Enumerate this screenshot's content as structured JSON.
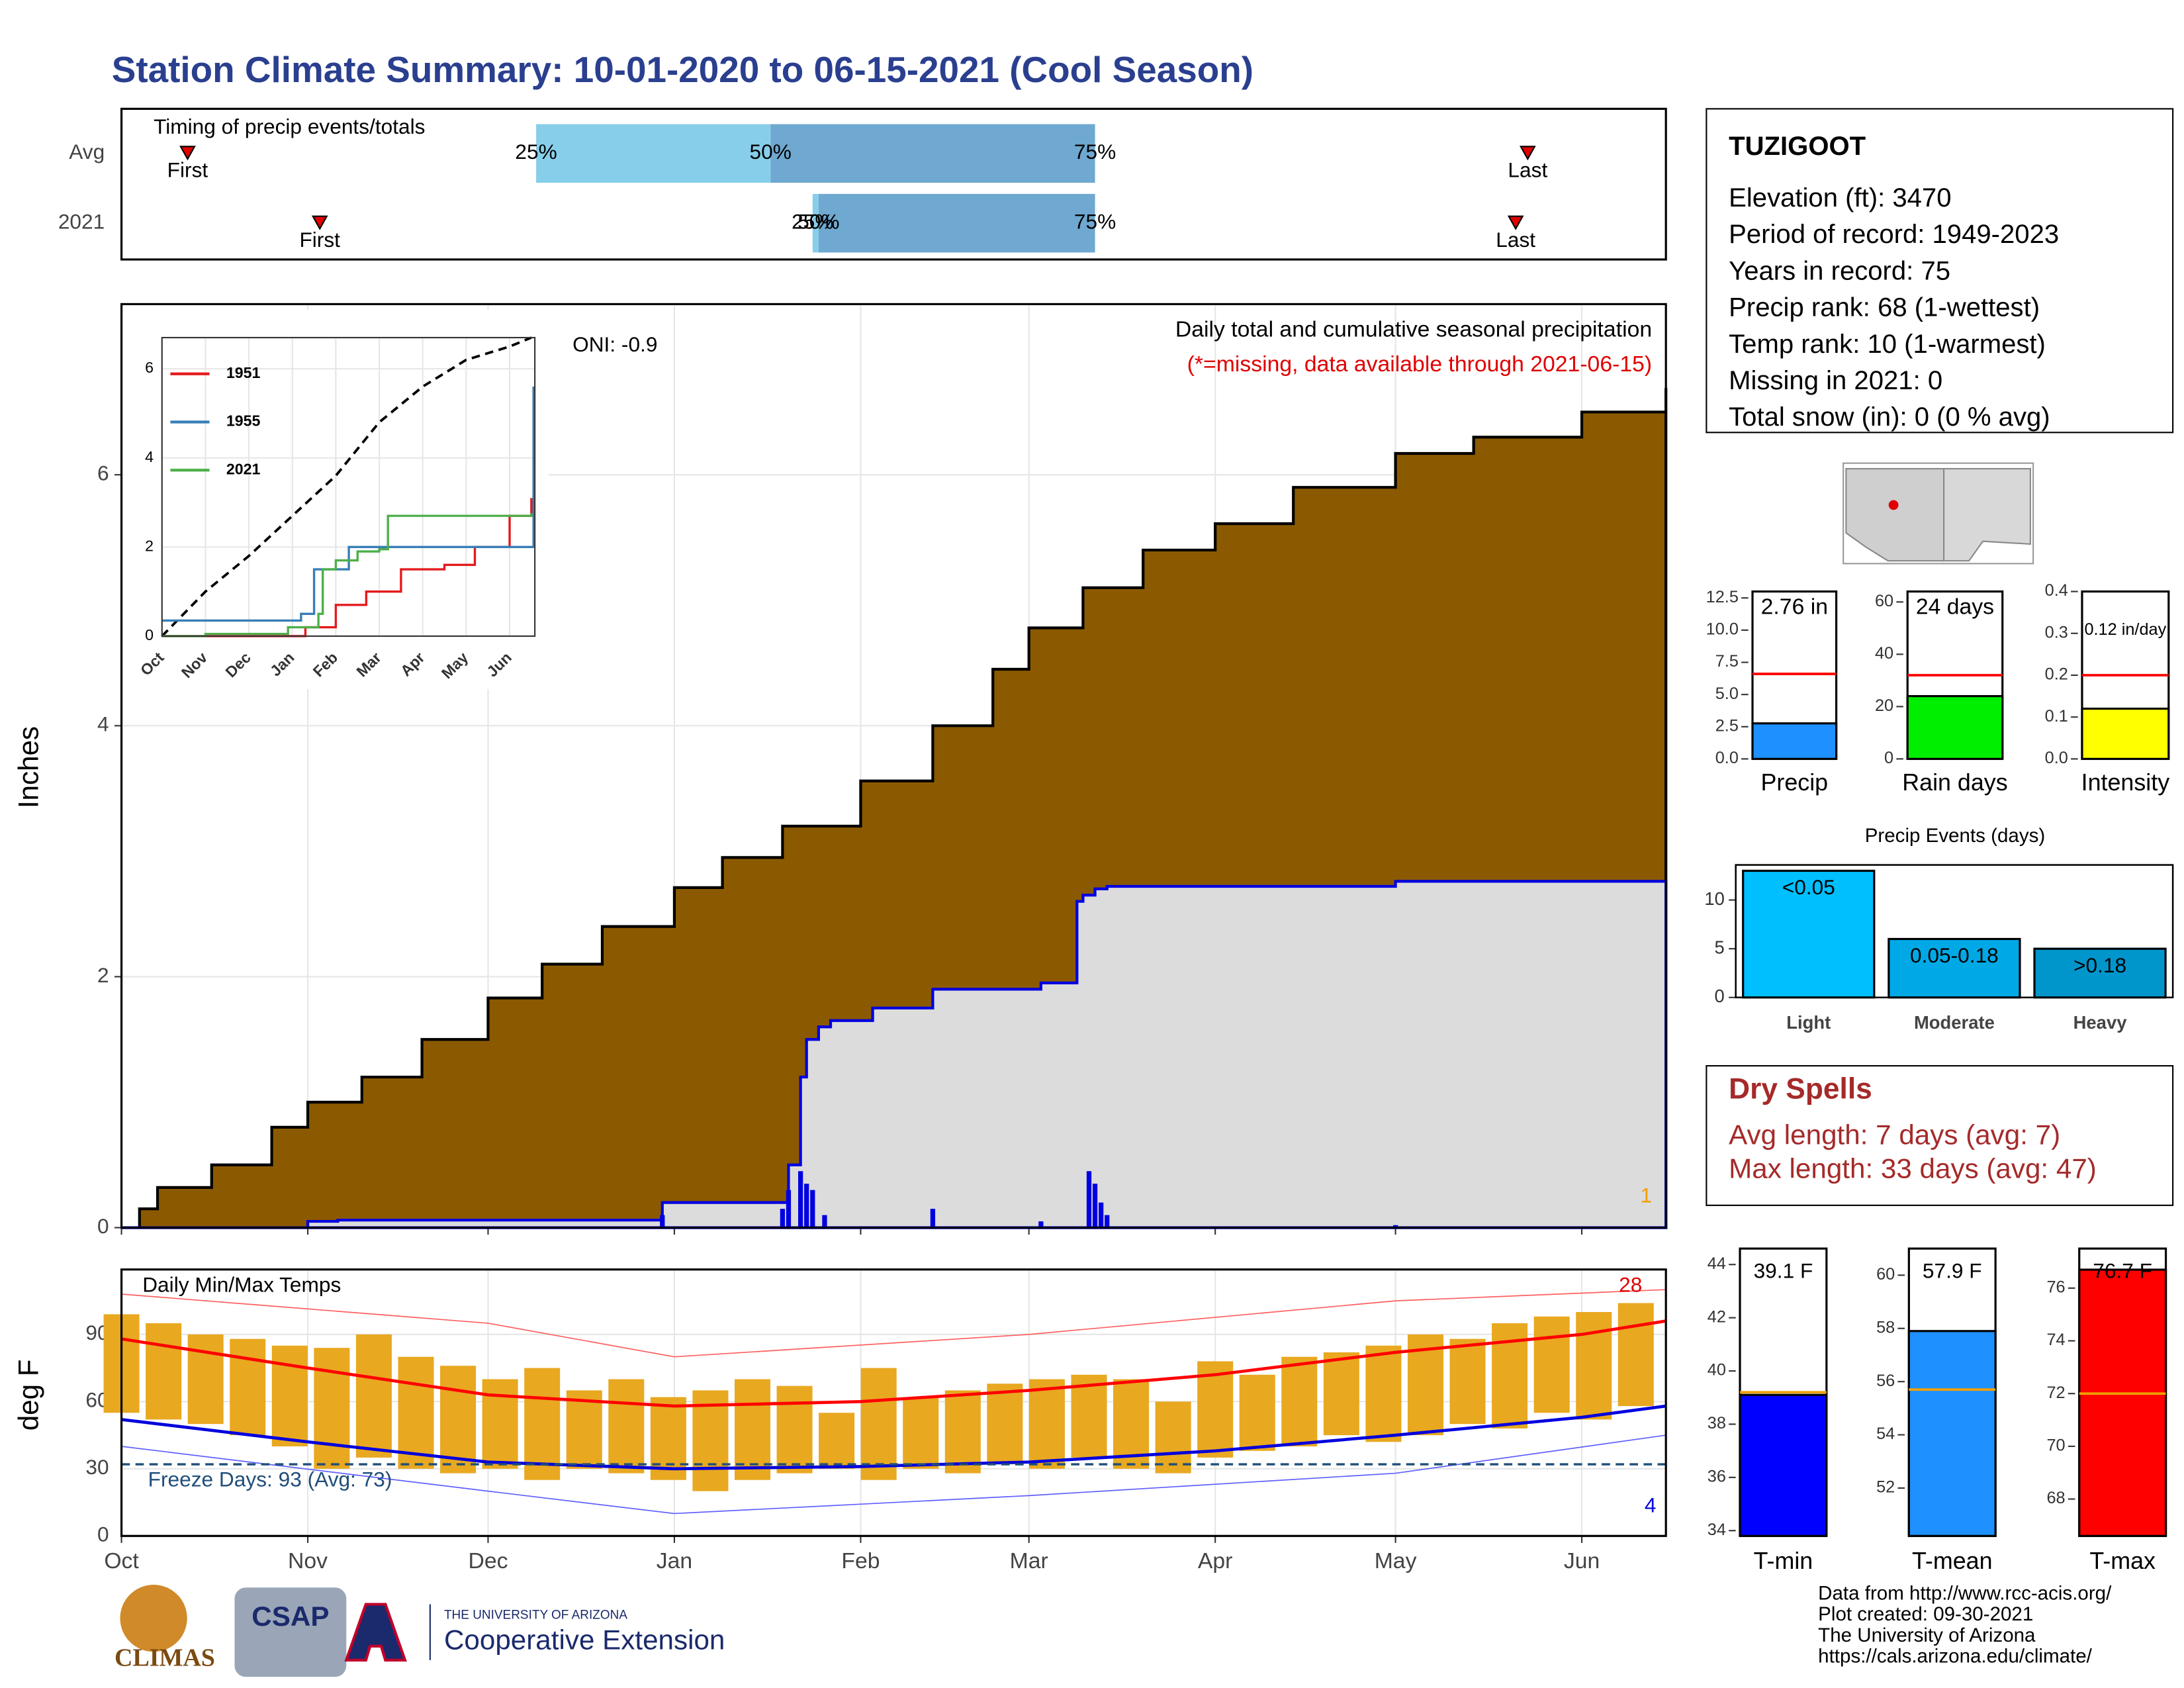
{
  "title": "Station Climate Summary: 10-01-2020 to 06-15-2021 (Cool Season)",
  "station": {
    "name": "TUZIGOOT",
    "lines": [
      "Elevation (ft): 3470",
      "Period of record: 1949-2023",
      "Years in record: 75",
      "Precip rank: 68 (1-wettest)",
      "Temp rank: 10 (1-warmest)",
      "Missing in 2021: 0",
      "Total snow (in): 0 (0 % avg)"
    ]
  },
  "dry_spells": {
    "title": "Dry Spells",
    "lines": [
      "Avg length: 7 days (avg: 7)",
      "Max length: 33 days (avg: 47)"
    ]
  },
  "footer": [
    "Data from http://www.rcc-acis.org/",
    "Plot created: 09-30-2021",
    "The University of Arizona",
    "https://cals.arizona.edu/climate/"
  ],
  "logos": {
    "climas": "CLIMAS",
    "csap": "CSAP",
    "ua_small": "THE UNIVERSITY OF ARIZONA",
    "ua": "Cooperative Extension"
  },
  "chart_data": [
    {
      "type": "timing",
      "title": "Timing of precip events/totals",
      "categories": [
        "Avg",
        "2021"
      ],
      "xlim": [
        0,
        257
      ],
      "rows": [
        {
          "first": 11,
          "p25": 69,
          "p50": 108,
          "p75": 162,
          "last": 234
        },
        {
          "first": 33,
          "p25": 115,
          "p50": 116,
          "p75": 162,
          "last": 232
        }
      ],
      "marker_labels": [
        "First",
        "Last"
      ],
      "pct_labels": [
        "25%",
        "50%",
        "75%"
      ],
      "colors": [
        "#87ceeb",
        "#6fa8d0"
      ],
      "marker_color": "#e00000"
    },
    {
      "type": "precip",
      "title": "Daily total and cumulative seasonal precipitation",
      "subtitle": "(*=missing, data available through 2021-06-15)",
      "annotation": "ONI: -0.9",
      "missing_label": "1",
      "y_label": "Inches",
      "xlim": [
        0,
        257
      ],
      "ylim": [
        0,
        7.36
      ],
      "yticks": [
        0,
        2,
        4,
        6
      ],
      "xticks": [
        0,
        31,
        61,
        92,
        123,
        151,
        182,
        212,
        243
      ],
      "grid": true,
      "avg": {
        "x": [
          0,
          3,
          6,
          15,
          25,
          31,
          40,
          50,
          61,
          70,
          80,
          92,
          100,
          110,
          123,
          135,
          145,
          151,
          160,
          170,
          182,
          195,
          212,
          225,
          243,
          257
        ],
        "values": [
          0,
          0.15,
          0.32,
          0.5,
          0.8,
          1.0,
          1.2,
          1.5,
          1.83,
          2.1,
          2.4,
          2.71,
          2.95,
          3.2,
          3.56,
          4.0,
          4.45,
          4.78,
          5.1,
          5.4,
          5.61,
          5.9,
          6.17,
          6.3,
          6.5,
          6.69
        ],
        "color": "#8b5a00"
      },
      "cum": {
        "x": [
          0,
          31,
          36,
          89,
          90,
          110,
          111,
          113,
          114,
          116,
          118,
          125,
          135,
          153,
          159,
          160,
          162,
          164,
          212,
          257
        ],
        "values": [
          0,
          0.05,
          0.06,
          0.06,
          0.2,
          0.2,
          0.5,
          1.2,
          1.5,
          1.6,
          1.65,
          1.75,
          1.9,
          1.95,
          2.6,
          2.65,
          2.7,
          2.72,
          2.76,
          2.76
        ],
        "color": "#dcdcdc",
        "line": "#0000e0"
      },
      "daily": {
        "x": [
          36,
          90,
          110,
          111,
          113,
          114,
          115,
          117,
          135,
          153,
          161,
          162,
          163,
          164,
          212,
          243
        ],
        "values": [
          0.01,
          0.1,
          0.15,
          0.3,
          0.45,
          0.35,
          0.3,
          0.1,
          0.15,
          0.05,
          0.45,
          0.35,
          0.2,
          0.1,
          0.02,
          0.01
        ],
        "color": "#0000e0"
      }
    },
    {
      "type": "line",
      "xlim": [
        0,
        8.58
      ],
      "ylim": [
        0,
        6.7
      ],
      "yticks": [
        0,
        2,
        4,
        6
      ],
      "xticks": [
        {
          "value": 0,
          "label": "Oct"
        },
        {
          "value": 1,
          "label": "Nov"
        },
        {
          "value": 2,
          "label": "Dec"
        },
        {
          "value": 3,
          "label": "Jan"
        },
        {
          "value": 4,
          "label": "Feb"
        },
        {
          "value": 5,
          "label": "Mar"
        },
        {
          "value": 6,
          "label": "Apr"
        },
        {
          "value": 7,
          "label": "May"
        },
        {
          "value": 8,
          "label": "Jun"
        }
      ],
      "average": {
        "x": [
          0,
          1,
          2,
          3,
          4,
          5,
          6,
          7,
          8,
          8.5
        ],
        "values": [
          0,
          1.0,
          1.8,
          2.7,
          3.6,
          4.8,
          5.6,
          6.2,
          6.5,
          6.7
        ],
        "color": "#000000"
      },
      "series": [
        {
          "name": "1951",
          "color": "#e41a1c",
          "x": [
            0,
            3.3,
            4.0,
            4.7,
            5.5,
            6.5,
            7.2,
            8.0,
            8.5
          ],
          "values": [
            0,
            0.2,
            0.7,
            1.0,
            1.5,
            1.6,
            2.0,
            2.7,
            3.1
          ]
        },
        {
          "name": "1955",
          "color": "#377eb8",
          "x": [
            0,
            3.2,
            3.5,
            4.3,
            8.5,
            8.55
          ],
          "values": [
            0.35,
            0.5,
            1.5,
            2.0,
            2.0,
            5.6
          ]
        },
        {
          "name": "2021",
          "color": "#4daf4a",
          "x": [
            0,
            1.0,
            2.9,
            3.6,
            3.7,
            4.0,
            4.5,
            5.0,
            5.2,
            8.5
          ],
          "values": [
            0,
            0.05,
            0.2,
            0.5,
            1.5,
            1.7,
            1.9,
            1.95,
            2.7,
            2.76
          ]
        }
      ]
    },
    {
      "type": "temps",
      "title": "Daily Min/Max Temps",
      "y_label": "deg F",
      "xlim": [
        0,
        257
      ],
      "ylim": [
        0,
        119
      ],
      "yticks": [
        0,
        30,
        60,
        90
      ],
      "xticks": [
        {
          "value": 0,
          "label": "Oct"
        },
        {
          "value": 31,
          "label": "Nov"
        },
        {
          "value": 61,
          "label": "Dec"
        },
        {
          "value": 92,
          "label": "Jan"
        },
        {
          "value": 123,
          "label": "Feb"
        },
        {
          "value": 151,
          "label": "Mar"
        },
        {
          "value": 182,
          "label": "Apr"
        },
        {
          "value": 212,
          "label": "May"
        },
        {
          "value": 243,
          "label": "Jun"
        }
      ],
      "grid": true,
      "bar_color": "#e8a820",
      "x": [
        0,
        7,
        14,
        21,
        28,
        35,
        42,
        49,
        56,
        63,
        70,
        77,
        84,
        91,
        98,
        105,
        112,
        119,
        126,
        133,
        140,
        147,
        154,
        161,
        168,
        175,
        182,
        189,
        196,
        203,
        210,
        217,
        224,
        231,
        238,
        245,
        252
      ],
      "max": [
        99,
        95,
        90,
        88,
        85,
        84,
        90,
        80,
        76,
        70,
        75,
        65,
        70,
        62,
        65,
        70,
        67,
        55,
        75,
        62,
        65,
        68,
        70,
        72,
        70,
        60,
        78,
        72,
        80,
        82,
        85,
        90,
        88,
        95,
        98,
        100,
        104
      ],
      "min": [
        55,
        52,
        50,
        45,
        40,
        30,
        35,
        30,
        28,
        30,
        25,
        30,
        28,
        25,
        20,
        25,
        28,
        30,
        25,
        30,
        28,
        32,
        30,
        35,
        30,
        28,
        35,
        38,
        40,
        45,
        42,
        45,
        50,
        48,
        55,
        52,
        58
      ],
      "avg_max": {
        "x": [
          0,
          31,
          61,
          92,
          123,
          151,
          182,
          212,
          243,
          257
        ],
        "values": [
          88,
          75,
          63,
          58,
          60,
          65,
          72,
          82,
          90,
          96
        ],
        "color": "#ff0000"
      },
      "avg_min": {
        "x": [
          0,
          31,
          61,
          92,
          123,
          151,
          182,
          212,
          243,
          257
        ],
        "values": [
          52,
          42,
          33,
          30,
          31,
          33,
          38,
          45,
          53,
          58
        ],
        "color": "#0000dd"
      },
      "rec_max": {
        "x": [
          0,
          61,
          92,
          151,
          212,
          257
        ],
        "values": [
          108,
          95,
          80,
          90,
          105,
          110
        ],
        "color": "#ff6060"
      },
      "rec_min": {
        "x": [
          0,
          61,
          92,
          151,
          212,
          257
        ],
        "values": [
          40,
          20,
          10,
          18,
          28,
          45
        ],
        "color": "#6060ff"
      },
      "freeze": {
        "value": 32,
        "label": "Freeze Days: 93 (Avg: 73)",
        "color": "#1f4e79"
      },
      "high_count": "28",
      "low_count": "4"
    },
    {
      "type": "gauge",
      "category": "Precip",
      "values": [
        2.76
      ],
      "value_labels": [
        "2.76 in"
      ],
      "average": 6.6,
      "color": "#1e90ff",
      "avg_color": "#ff0000",
      "ylim": [
        0,
        13
      ],
      "yticks": [
        {
          "value": 0,
          "label": "0.0"
        },
        {
          "value": 2.5,
          "label": "2.5"
        },
        {
          "value": 5,
          "label": "5.0"
        },
        {
          "value": 7.5,
          "label": "7.5"
        },
        {
          "value": 10,
          "label": "10.0"
        },
        {
          "value": 12.5,
          "label": "12.5"
        }
      ]
    },
    {
      "type": "gauge",
      "category": "Rain days",
      "values": [
        24
      ],
      "value_labels": [
        "24 days"
      ],
      "average": 32,
      "color": "#00ee00",
      "avg_color": "#ff0000",
      "ylim": [
        0,
        64
      ],
      "yticks": [
        0,
        20,
        40,
        60
      ]
    },
    {
      "type": "gauge",
      "category": "Intensity",
      "values": [
        0.12
      ],
      "value_labels": [
        "0.12 in/day"
      ],
      "average": 0.2,
      "color": "#ffff00",
      "avg_color": "#ff0000",
      "ylim": [
        0,
        0.4
      ],
      "yticks": [
        {
          "value": 0,
          "label": "0.0"
        },
        {
          "value": 0.1,
          "label": "0.1"
        },
        {
          "value": 0.2,
          "label": "0.2"
        },
        {
          "value": 0.3,
          "label": "0.3"
        },
        {
          "value": 0.4,
          "label": "0.4"
        }
      ]
    },
    {
      "type": "gauge",
      "category": "T-min",
      "values": [
        39.1
      ],
      "value_labels": [
        "39.1 F"
      ],
      "average": 39.2,
      "color": "#0000ff",
      "avg_color": "#f0a000",
      "ylim": [
        33.8,
        44.6
      ],
      "yticks": [
        34,
        36,
        38,
        40,
        42,
        44
      ]
    },
    {
      "type": "gauge",
      "category": "T-mean",
      "values": [
        57.9
      ],
      "value_labels": [
        "57.9 F"
      ],
      "average": 55.7,
      "color": "#1e90ff",
      "avg_color": "#f0a000",
      "ylim": [
        50.2,
        61
      ],
      "yticks": [
        52,
        54,
        56,
        58,
        60
      ]
    },
    {
      "type": "gauge",
      "category": "T-max",
      "values": [
        76.7
      ],
      "value_labels": [
        "76.7 F"
      ],
      "average": 72,
      "color": "#ff0000",
      "avg_color": "#f0a000",
      "ylim": [
        66.6,
        77.5
      ],
      "yticks": [
        68,
        70,
        72,
        74,
        76
      ]
    },
    {
      "type": "bar",
      "title": "Precip Events (days)",
      "categories": [
        "Light",
        "Moderate",
        "Heavy"
      ],
      "values": [
        13,
        6,
        5
      ],
      "value_labels": [
        "<0.05",
        "0.05-0.18",
        ">0.18"
      ],
      "colors": [
        "#00bfff",
        "#00a9e6",
        "#0096cc"
      ],
      "ylim": [
        0,
        13.6
      ],
      "yticks": [
        0,
        5,
        10
      ]
    }
  ]
}
